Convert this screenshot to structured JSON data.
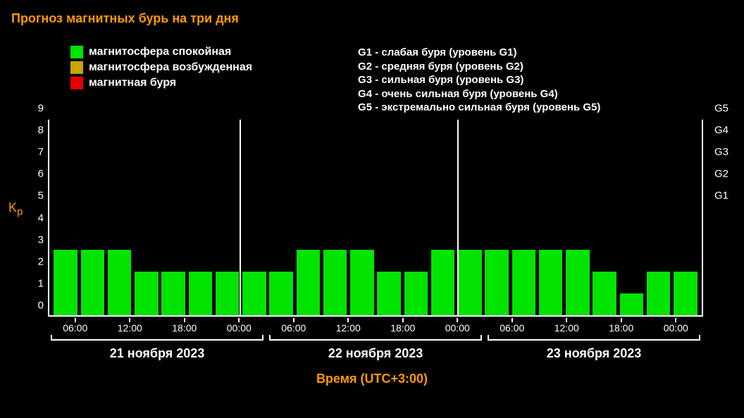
{
  "title": "Прогноз магнитных бурь на три дня",
  "legend": [
    {
      "color": "#00E400",
      "label": "магнитосфера спокойная"
    },
    {
      "color": "#C7A600",
      "label": "магнитосфера возбужденная"
    },
    {
      "color": "#E60000",
      "label": "магнитная буря"
    }
  ],
  "g_levels": [
    "G1 - слабая буря (уровень G1)",
    "G2 - средняя буря (уровень G2)",
    "G3 - сильная буря (уровень G3)",
    "G4 - очень сильная буря (уровень G4)",
    "G5 - экстремально сильная буря (уровень G5)"
  ],
  "chart": {
    "type": "bar",
    "y_label": "Kp",
    "x_label": "Время (UTC+3:00)",
    "y_ticks": [
      0,
      1,
      2,
      3,
      4,
      5,
      6,
      7,
      8,
      9
    ],
    "y_max": 9,
    "right_ticks": [
      {
        "label": "G1",
        "at": 5
      },
      {
        "label": "G2",
        "at": 6
      },
      {
        "label": "G3",
        "at": 7
      },
      {
        "label": "G4",
        "at": 8
      },
      {
        "label": "G5",
        "at": 9
      }
    ],
    "bars": [
      3,
      3,
      3,
      2,
      2,
      2,
      2,
      2,
      2,
      3,
      3,
      3,
      2,
      2,
      3,
      3,
      3,
      3,
      3,
      3,
      2,
      1,
      2,
      2
    ],
    "bar_color": "#00E400",
    "day_separators": [
      7,
      15
    ],
    "x_ticks": [
      {
        "pos": 1,
        "label": "06:00"
      },
      {
        "pos": 3,
        "label": "12:00"
      },
      {
        "pos": 5,
        "label": "18:00"
      },
      {
        "pos": 7,
        "label": "00:00"
      },
      {
        "pos": 9,
        "label": "06:00"
      },
      {
        "pos": 11,
        "label": "12:00"
      },
      {
        "pos": 13,
        "label": "18:00"
      },
      {
        "pos": 15,
        "label": "00:00"
      },
      {
        "pos": 17,
        "label": "06:00"
      },
      {
        "pos": 19,
        "label": "12:00"
      },
      {
        "pos": 21,
        "label": "18:00"
      },
      {
        "pos": 23,
        "label": "00:00"
      }
    ],
    "days": [
      "21 ноября 2023",
      "22 ноября 2023",
      "23 ноября 2023"
    ],
    "colors": {
      "background": "#000000",
      "axis": "#ffffff",
      "title": "#ff9900",
      "label": "#ff9900",
      "tick_text": "#ffffff"
    }
  }
}
